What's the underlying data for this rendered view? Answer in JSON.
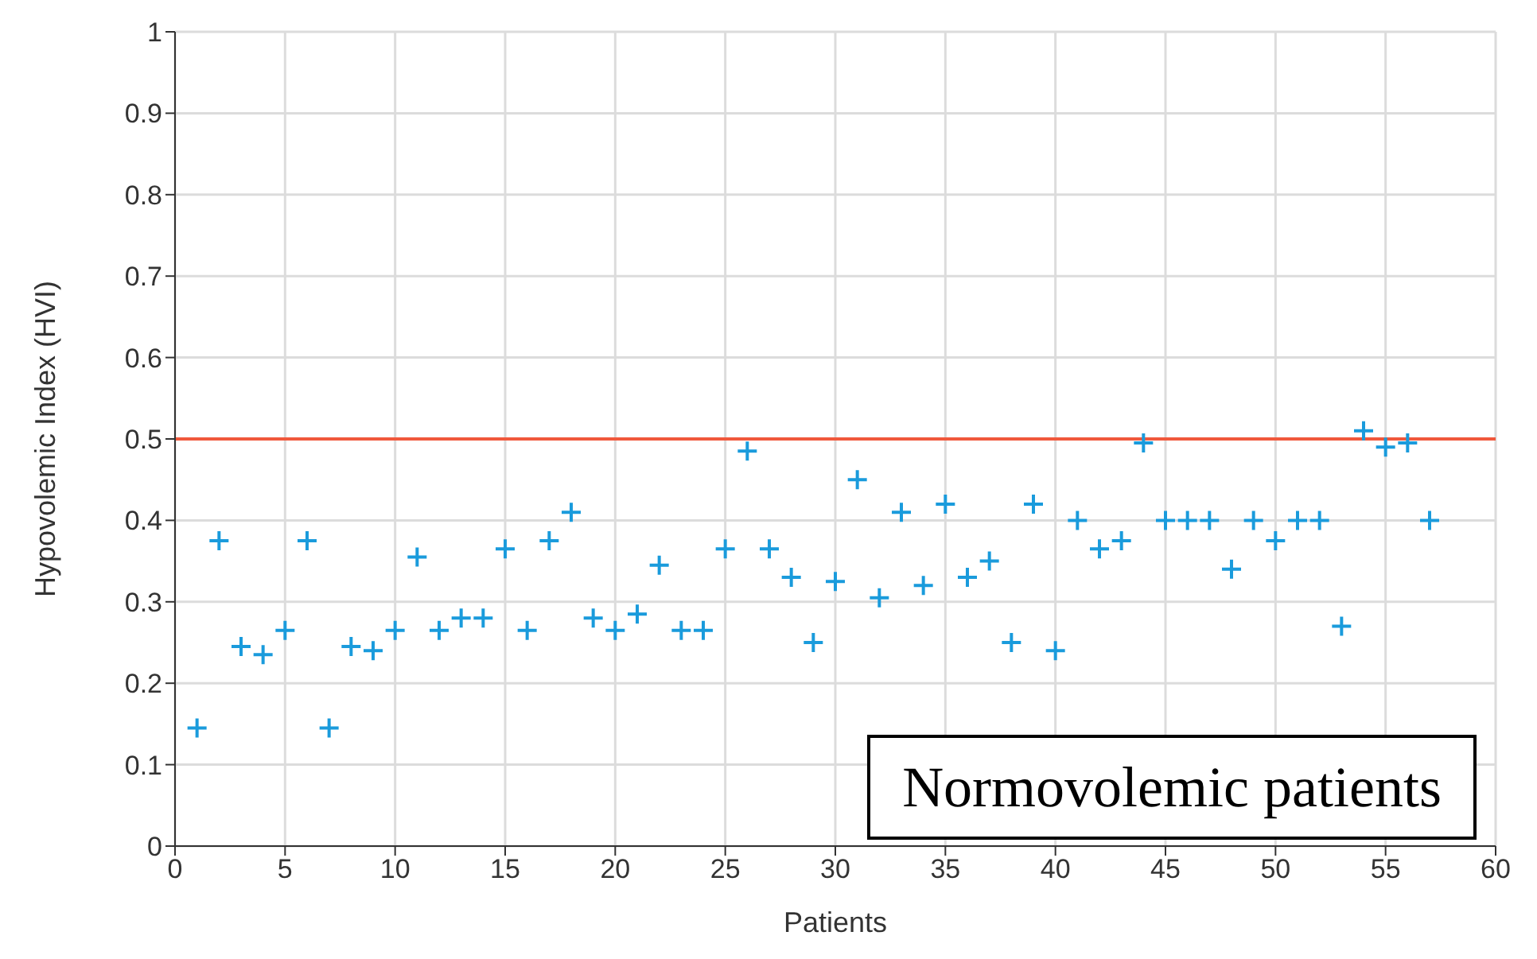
{
  "chart_data": {
    "type": "scatter",
    "xlabel": "Patients",
    "ylabel": "Hypovolemic Index (HVI)",
    "x": [
      1,
      2,
      3,
      4,
      5,
      6,
      7,
      8,
      9,
      10,
      11,
      12,
      13,
      14,
      15,
      16,
      17,
      18,
      19,
      20,
      21,
      22,
      23,
      24,
      25,
      26,
      27,
      28,
      29,
      30,
      31,
      32,
      33,
      34,
      35,
      36,
      37,
      38,
      39,
      40,
      41,
      42,
      43,
      44,
      45,
      46,
      47,
      48,
      49,
      50,
      51,
      52,
      53,
      54,
      55,
      56,
      57
    ],
    "series": [
      {
        "color": "#1a9bdc",
        "values": [
          0.145,
          0.375,
          0.245,
          0.235,
          0.265,
          0.375,
          0.145,
          0.245,
          0.24,
          0.265,
          0.355,
          0.265,
          0.28,
          0.28,
          0.365,
          0.265,
          0.375,
          0.41,
          0.28,
          0.265,
          0.285,
          0.345,
          0.265,
          0.265,
          0.365,
          0.485,
          0.365,
          0.33,
          0.25,
          0.325,
          0.45,
          0.305,
          0.41,
          0.32,
          0.42,
          0.33,
          0.35,
          0.25,
          0.42,
          0.24,
          0.4,
          0.365,
          0.375,
          0.495,
          0.4,
          0.4,
          0.4,
          0.34,
          0.4,
          0.375,
          0.4,
          0.4,
          0.27,
          0.51,
          0.49,
          0.495,
          0.4
        ]
      }
    ],
    "xlim": [
      0,
      60
    ],
    "xticks": [
      0,
      5,
      10,
      15,
      20,
      25,
      30,
      35,
      40,
      45,
      50,
      55,
      60
    ],
    "ylim": [
      0,
      1
    ],
    "yticks": [
      0,
      0.1,
      0.2,
      0.3,
      0.4,
      0.5,
      0.6,
      0.7,
      0.8,
      0.9,
      1
    ],
    "ref_lines": [
      {
        "axis": "y",
        "value": 0.5,
        "color": "#f0583c"
      }
    ],
    "annotations": [
      "Normovolemic patients"
    ],
    "grid": true,
    "marker": "cross",
    "legend": false
  }
}
